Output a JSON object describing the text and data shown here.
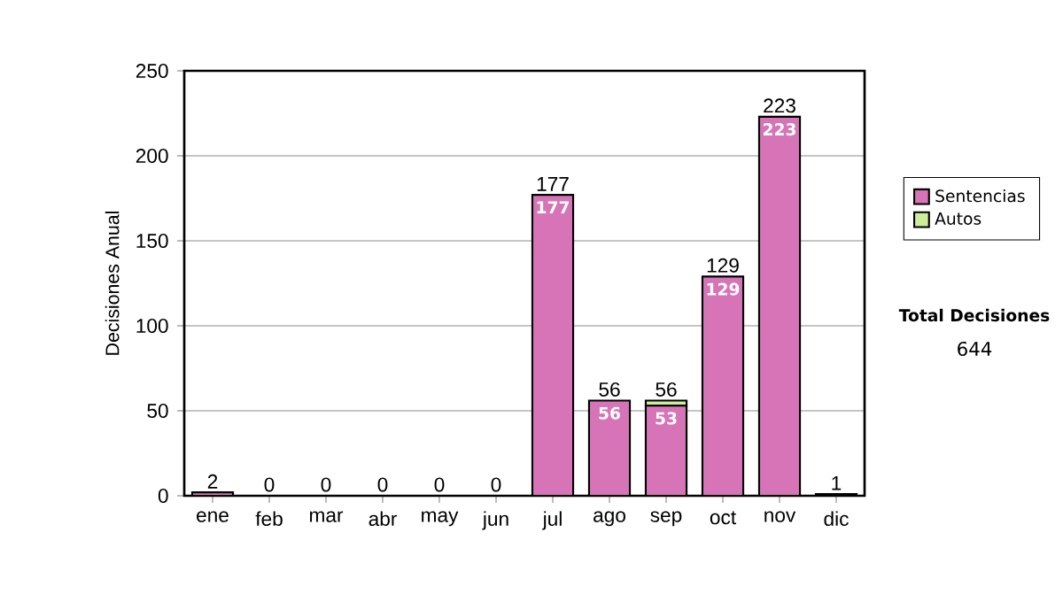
{
  "chart_data": {
    "type": "bar",
    "stacked": true,
    "ylabel": "Decisiones Anual",
    "categories": [
      "ene",
      "feb",
      "mar",
      "abr",
      "may",
      "jun",
      "jul",
      "ago",
      "sep",
      "oct",
      "nov",
      "dic"
    ],
    "series": [
      {
        "name": "Sentencias",
        "color": "#d774b8",
        "values": [
          2,
          0,
          0,
          0,
          0,
          0,
          177,
          56,
          53,
          129,
          223,
          1
        ],
        "value_labels": [
          null,
          null,
          null,
          null,
          null,
          null,
          "177",
          "56",
          "53",
          "129",
          "223",
          null
        ]
      },
      {
        "name": "Autos",
        "color": "#ccee99",
        "values": [
          0,
          0,
          0,
          0,
          0,
          0,
          0,
          0,
          3,
          0,
          0,
          0
        ]
      }
    ],
    "totals": [
      "2",
      "0",
      "0",
      "0",
      "0",
      "0",
      "177",
      "56",
      "56",
      "129",
      "223",
      "1"
    ],
    "ylim": [
      0,
      250
    ],
    "yticks": [
      0,
      50,
      100,
      150,
      200,
      250
    ],
    "grid": "y",
    "legend": "right",
    "annotations": [
      "Total Decisiones",
      "644"
    ]
  }
}
